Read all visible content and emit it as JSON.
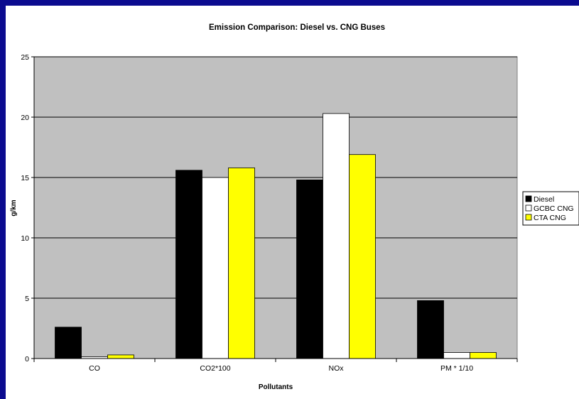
{
  "chart_data": {
    "type": "bar",
    "title": "Emission Comparison: Diesel vs. CNG Buses",
    "xlabel": "Pollutants",
    "ylabel": "g/km",
    "categories": [
      "CO",
      "CO2*100",
      "NOx",
      "PM * 1/10"
    ],
    "ylim": [
      0,
      25
    ],
    "yticks": [
      "0",
      "5",
      "10",
      "15",
      "20",
      "25"
    ],
    "grid": true,
    "legend_position": "right",
    "series": [
      {
        "name": "Diesel",
        "color": "#000000",
        "values": [
          2.6,
          15.6,
          14.8,
          4.8
        ]
      },
      {
        "name": "GCBC CNG",
        "color": "#ffffff",
        "values": [
          0.15,
          15.0,
          20.3,
          0.5
        ]
      },
      {
        "name": "CTA CNG",
        "color": "#ffff00",
        "values": [
          0.3,
          15.8,
          16.9,
          0.5
        ]
      }
    ],
    "plot_background": "#c0c0c0"
  }
}
